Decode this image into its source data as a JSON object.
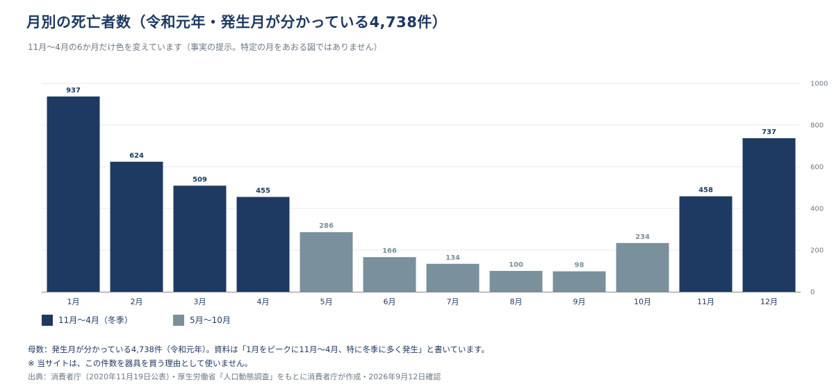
{
  "header": {
    "title": "月別の死亡者数（令和元年・発生月が分かっている4,738件）",
    "subtitle": "11月〜4月の6か月だけ色を変えています（事実の提示。特定の月をあおる図ではありません）"
  },
  "colors": {
    "winter": "#1e3a62",
    "other": "#7a909c",
    "grid": "#e6e9ed",
    "axis": "#888888",
    "tick_text": "#6b7785",
    "label_text": "#1e3a62"
  },
  "chart_data": {
    "type": "bar",
    "categories": [
      "1月",
      "2月",
      "3月",
      "4月",
      "5月",
      "6月",
      "7月",
      "8月",
      "9月",
      "10月",
      "11月",
      "12月"
    ],
    "values": [
      937,
      624,
      509,
      455,
      286,
      166,
      134,
      100,
      98,
      234,
      458,
      737
    ],
    "groups": [
      "winter",
      "winter",
      "winter",
      "winter",
      "other",
      "other",
      "other",
      "other",
      "other",
      "other",
      "winter",
      "winter"
    ],
    "ylim": [
      0,
      1000
    ],
    "yticks": [
      0,
      200,
      400,
      600,
      800,
      1000
    ],
    "y_axis_side": "right",
    "grid": true,
    "legend_position": "bottom-left",
    "data_labels": true
  },
  "legend": {
    "items": [
      {
        "label": "11月〜4月（冬季）",
        "color_key": "winter"
      },
      {
        "label": "5月〜10月",
        "color_key": "other"
      }
    ]
  },
  "footer": {
    "note1": "母数：発生月が分かっている4,738件（令和元年）。資料は「1月をピークに11月〜4月、特に冬季に多く発生」と書いています。",
    "note2": "※ 当サイトは、この件数を器具を買う理由として使いません。",
    "source": "出典：消費者庁（2020年11月19日公表）・厚生労働省「人口動態調査」をもとに消費者庁が作成・2026年9月12日確認"
  }
}
